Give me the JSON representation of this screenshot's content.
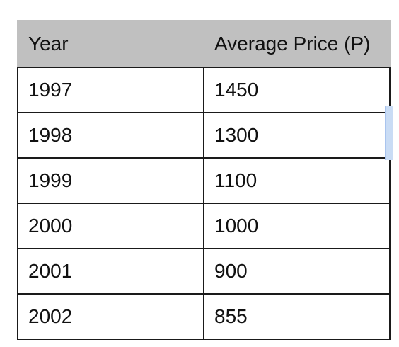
{
  "table": {
    "headers": [
      "Year",
      "Average Price (P)"
    ],
    "rows": [
      [
        "1997",
        "1450"
      ],
      [
        "1998",
        "1300"
      ],
      [
        "1999",
        "1100"
      ],
      [
        "2000",
        "1000"
      ],
      [
        "2001",
        "900"
      ],
      [
        "2002",
        "855"
      ]
    ]
  },
  "colors": {
    "header_background": "#c0c0c0",
    "border": "#1a1a1a",
    "selection_marker": "#c9dcf5"
  }
}
